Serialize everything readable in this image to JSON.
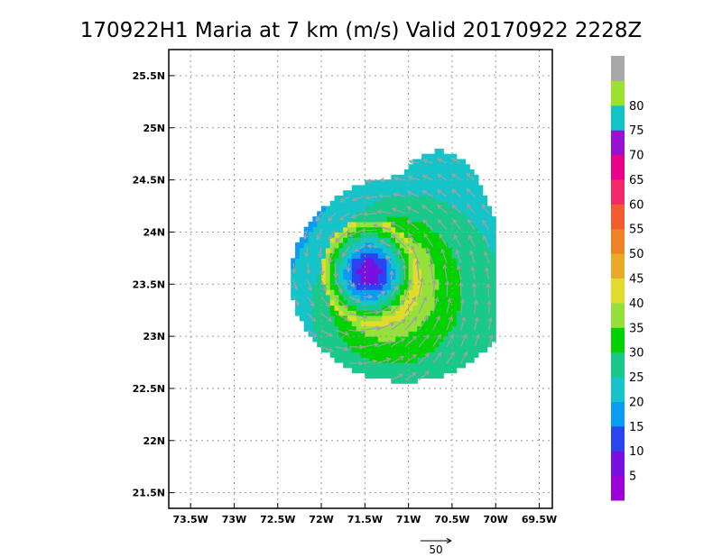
{
  "chart_data": {
    "type": "heatmap",
    "title": "170922H1 Maria at 7 km (m/s) Valid 20170922 2228Z",
    "x_ticks": [
      {
        "value": -73.5,
        "label": "73.5W"
      },
      {
        "value": -73.0,
        "label": "73W"
      },
      {
        "value": -72.5,
        "label": "72.5W"
      },
      {
        "value": -72.0,
        "label": "72W"
      },
      {
        "value": -71.5,
        "label": "71.5W"
      },
      {
        "value": -71.0,
        "label": "71W"
      },
      {
        "value": -70.5,
        "label": "70.5W"
      },
      {
        "value": -70.0,
        "label": "70W"
      },
      {
        "value": -69.5,
        "label": "69.5W"
      }
    ],
    "y_ticks": [
      {
        "value": 21.5,
        "label": "21.5N"
      },
      {
        "value": 22.0,
        "label": "22N"
      },
      {
        "value": 22.5,
        "label": "22.5N"
      },
      {
        "value": 23.0,
        "label": "23N"
      },
      {
        "value": 23.5,
        "label": "23.5N"
      },
      {
        "value": 24.0,
        "label": "24N"
      },
      {
        "value": 24.5,
        "label": "24.5N"
      },
      {
        "value": 25.0,
        "label": "25N"
      },
      {
        "value": 25.5,
        "label": "25.5N"
      }
    ],
    "xlim": [
      -73.75,
      -69.35
    ],
    "ylim": [
      21.35,
      25.75
    ],
    "grid": true,
    "storm_center": {
      "lon": -71.45,
      "lat": 23.62
    },
    "wind_field": {
      "min_wind": 5,
      "max_wind": 43,
      "rmw_deg": 0.5,
      "decay_deg": 0.5
    },
    "colorbar": {
      "levels": [
        0,
        5,
        10,
        15,
        20,
        25,
        30,
        35,
        40,
        45,
        50,
        55,
        60,
        65,
        70,
        75,
        80,
        85
      ],
      "colors": [
        "#9b00d6",
        "#7a10e0",
        "#2b44f2",
        "#0a9cf2",
        "#14c4c8",
        "#19c98a",
        "#00d200",
        "#96e03c",
        "#e0dc2c",
        "#e8aa28",
        "#ee8224",
        "#f45a30",
        "#f2286a",
        "#e8008a",
        "#9a10d2",
        "#10c4c8",
        "#9ce030",
        "#a8a8a8"
      ],
      "labels": [
        "5",
        "10",
        "15",
        "20",
        "25",
        "30",
        "35",
        "40",
        "45",
        "50",
        "55",
        "60",
        "65",
        "70",
        "75",
        "80"
      ]
    },
    "reference_vector": {
      "value": 50,
      "label": "50"
    }
  }
}
